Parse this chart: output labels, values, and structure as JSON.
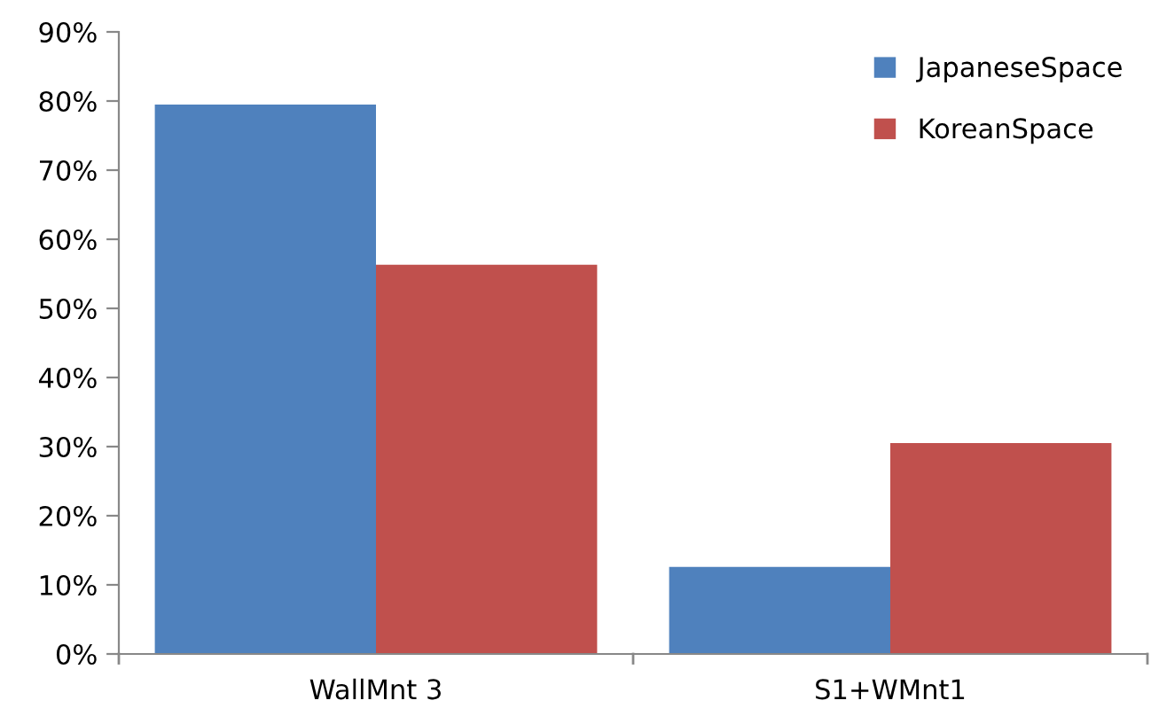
{
  "chart_data": {
    "type": "bar",
    "categories": [
      "WallMnt 3",
      "S1+WMnt1"
    ],
    "series": [
      {
        "name": "JapaneseSpace",
        "color": "#4f81bd",
        "values": [
          79.5,
          12.6
        ]
      },
      {
        "name": "KoreanSpace",
        "color": "#c0504d",
        "values": [
          56.3,
          30.5
        ]
      }
    ],
    "ylim": [
      0,
      90
    ],
    "yticks": [
      {
        "value": 0,
        "label": "0%"
      },
      {
        "value": 10,
        "label": "10%"
      },
      {
        "value": 20,
        "label": "20%"
      },
      {
        "value": 30,
        "label": "30%"
      },
      {
        "value": 40,
        "label": "40%"
      },
      {
        "value": 50,
        "label": "50%"
      },
      {
        "value": 60,
        "label": "60%"
      },
      {
        "value": 70,
        "label": "70%"
      },
      {
        "value": 80,
        "label": "80%"
      },
      {
        "value": 90,
        "label": "90%"
      }
    ],
    "grid": false,
    "legend": "top right"
  }
}
